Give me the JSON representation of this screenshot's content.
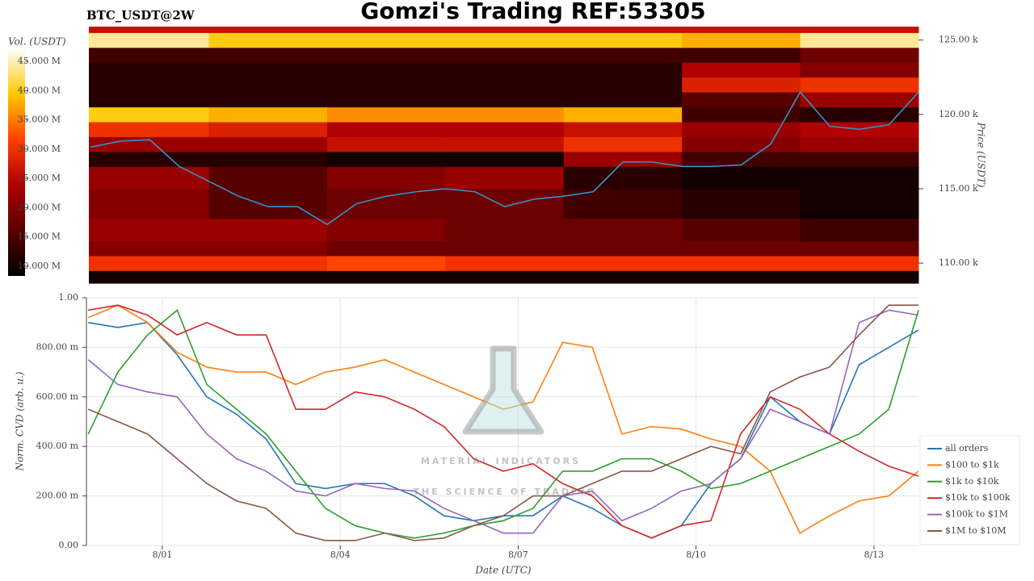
{
  "title": "Gomzi's Trading REF:53305",
  "subtitle": "BTC_USDT@2W",
  "watermark": {
    "title": "MATERIAL INDICATORS",
    "subtitle": "THE SCIENCE OF TRADING"
  },
  "chart_data": [
    {
      "type": "heatmap",
      "ylabel": "Price (USDT)",
      "xlim": [
        -1.28,
        12.75
      ],
      "ylim": [
        108.65,
        125.9
      ],
      "yticks": [
        {
          "value": 110,
          "label": "110.00 k"
        },
        {
          "value": 115,
          "label": "115.00 k"
        },
        {
          "value": 120,
          "label": "120.00 k"
        },
        {
          "value": 125,
          "label": "125.00 k"
        }
      ],
      "x_edges": [
        -1.28,
        0.75,
        2.75,
        4.75,
        6.75,
        8.75,
        10.75,
        12.75
      ],
      "y_edges": [
        108.65,
        109.5,
        110.5,
        111.5,
        113,
        115,
        116.5,
        117.5,
        118.5,
        119.5,
        120.5,
        121.5,
        122.5,
        123.5,
        124.5,
        125.5,
        125.9
      ],
      "values": [
        [
          10,
          10,
          10,
          10,
          10,
          10,
          10
        ],
        [
          30,
          30,
          32,
          30,
          30,
          30,
          30
        ],
        [
          20,
          20,
          18,
          18,
          18,
          18,
          18
        ],
        [
          22,
          22,
          20,
          18,
          18,
          16,
          14
        ],
        [
          20,
          16,
          18,
          18,
          14,
          12,
          10
        ],
        [
          22,
          16,
          20,
          22,
          12,
          10,
          10
        ],
        [
          12,
          12,
          10,
          10,
          22,
          14,
          14
        ],
        [
          22,
          22,
          26,
          26,
          30,
          20,
          22
        ],
        [
          30,
          28,
          24,
          24,
          26,
          22,
          24
        ],
        [
          40,
          38,
          36,
          36,
          38,
          14,
          12
        ],
        [
          12,
          12,
          12,
          12,
          12,
          16,
          22
        ],
        [
          12,
          12,
          12,
          12,
          12,
          28,
          30
        ],
        [
          12,
          12,
          12,
          12,
          12,
          24,
          20
        ],
        [
          14,
          14,
          14,
          14,
          14,
          14,
          18
        ],
        [
          44,
          40,
          40,
          40,
          40,
          38,
          44
        ],
        [
          26,
          26,
          26,
          26,
          26,
          26,
          26
        ]
      ],
      "colorbar": {
        "label": "Vol. (USDT)",
        "lim": [
          8.35,
          47.2
        ],
        "ticks": [
          {
            "value": 10,
            "label": "10.000 M"
          },
          {
            "value": 15,
            "label": "15.000 M"
          },
          {
            "value": 20,
            "label": "20.000 M"
          },
          {
            "value": 25,
            "label": "25.000 M"
          },
          {
            "value": 30,
            "label": "30.000 M"
          },
          {
            "value": 35,
            "label": "35.000 M"
          },
          {
            "value": 40,
            "label": "40.000 M"
          },
          {
            "value": 45,
            "label": "45.000 M"
          }
        ]
      },
      "price": {
        "color": "#3a8fc7",
        "x": [
          -1.25,
          -0.75,
          -0.25,
          0.25,
          0.75,
          1.25,
          1.75,
          2.25,
          2.75,
          3.25,
          3.75,
          4.25,
          4.75,
          5.25,
          5.75,
          6.25,
          6.75,
          7.25,
          7.75,
          8.25,
          8.75,
          9.25,
          9.75,
          10.25,
          10.75,
          11.25,
          11.75,
          12.25,
          12.75
        ],
        "values": [
          117.8,
          118.2,
          118.3,
          116.5,
          115.5,
          114.5,
          113.8,
          113.8,
          112.6,
          114,
          114.5,
          114.8,
          115,
          114.8,
          113.8,
          114.3,
          114.5,
          114.8,
          116.8,
          116.8,
          116.5,
          116.5,
          116.6,
          118,
          121.5,
          119.2,
          119,
          119.3,
          121.5
        ]
      }
    },
    {
      "type": "line",
      "xlabel": "Date (UTC)",
      "ylabel": "Norm. CVD (arb. u.)",
      "grid": true,
      "legend": "right",
      "xlim": [
        -1.28,
        12.75
      ],
      "ylim": [
        0,
        1
      ],
      "xticks": [
        {
          "value": 0,
          "label": "8/01"
        },
        {
          "value": 3,
          "label": "8/04"
        },
        {
          "value": 6,
          "label": "8/07"
        },
        {
          "value": 9,
          "label": "8/10"
        },
        {
          "value": 12,
          "label": "8/13"
        }
      ],
      "yticks": [
        {
          "value": 0,
          "label": "0.00"
        },
        {
          "value": 0.2,
          "label": "200.00 m"
        },
        {
          "value": 0.4,
          "label": "400.00 m"
        },
        {
          "value": 0.6,
          "label": "600.00 m"
        },
        {
          "value": 0.8,
          "label": "800.00 m"
        },
        {
          "value": 1,
          "label": "1.00"
        }
      ],
      "x": [
        -1.25,
        -0.75,
        -0.25,
        0.25,
        0.75,
        1.25,
        1.75,
        2.25,
        2.75,
        3.25,
        3.75,
        4.25,
        4.75,
        5.25,
        5.75,
        6.25,
        6.75,
        7.25,
        7.75,
        8.25,
        8.75,
        9.25,
        9.75,
        10.25,
        10.75,
        11.25,
        11.75,
        12.25,
        12.75
      ],
      "series": [
        {
          "name": "all orders",
          "color": "#1f77b4",
          "values": [
            0.9,
            0.88,
            0.9,
            0.77,
            0.6,
            0.53,
            0.43,
            0.25,
            0.23,
            0.25,
            0.25,
            0.2,
            0.12,
            0.1,
            0.12,
            0.12,
            0.2,
            0.15,
            0.08,
            0.03,
            0.08,
            0.25,
            0.35,
            0.6,
            0.5,
            0.45,
            0.73,
            0.8,
            0.87
          ]
        },
        {
          "name": "$100 to $1k",
          "color": "#ff7f0e",
          "values": [
            0.92,
            0.97,
            0.9,
            0.78,
            0.72,
            0.7,
            0.7,
            0.65,
            0.7,
            0.72,
            0.75,
            0.7,
            0.65,
            0.6,
            0.55,
            0.58,
            0.82,
            0.8,
            0.45,
            0.48,
            0.47,
            0.43,
            0.4,
            0.3,
            0.05,
            0.12,
            0.18,
            0.2,
            0.3
          ]
        },
        {
          "name": "$1k to $10k",
          "color": "#2ca02c",
          "values": [
            0.45,
            0.7,
            0.85,
            0.95,
            0.65,
            0.55,
            0.45,
            0.3,
            0.15,
            0.08,
            0.05,
            0.03,
            0.05,
            0.08,
            0.1,
            0.15,
            0.3,
            0.3,
            0.35,
            0.35,
            0.3,
            0.23,
            0.25,
            0.3,
            0.35,
            0.4,
            0.45,
            0.55,
            0.95
          ]
        },
        {
          "name": "$10k to $100k",
          "color": "#d62728",
          "values": [
            0.95,
            0.97,
            0.93,
            0.85,
            0.9,
            0.85,
            0.85,
            0.55,
            0.55,
            0.62,
            0.6,
            0.55,
            0.48,
            0.35,
            0.3,
            0.33,
            0.25,
            0.2,
            0.08,
            0.03,
            0.08,
            0.1,
            0.45,
            0.6,
            0.55,
            0.45,
            0.38,
            0.32,
            0.28
          ]
        },
        {
          "name": "$100k to $1M",
          "color": "#9467bd",
          "values": [
            0.75,
            0.65,
            0.62,
            0.6,
            0.45,
            0.35,
            0.3,
            0.22,
            0.2,
            0.25,
            0.23,
            0.22,
            0.15,
            0.1,
            0.05,
            0.05,
            0.2,
            0.22,
            0.1,
            0.15,
            0.22,
            0.25,
            0.35,
            0.55,
            0.5,
            0.45,
            0.9,
            0.95,
            0.93
          ]
        },
        {
          "name": "$1M to $10M",
          "color": "#8c564b",
          "values": [
            0.55,
            0.5,
            0.45,
            0.35,
            0.25,
            0.18,
            0.15,
            0.05,
            0.02,
            0.02,
            0.05,
            0.02,
            0.03,
            0.08,
            0.12,
            0.2,
            0.2,
            0.25,
            0.3,
            0.3,
            0.35,
            0.4,
            0.37,
            0.62,
            0.68,
            0.72,
            0.85,
            0.97,
            0.97
          ]
        }
      ]
    }
  ]
}
